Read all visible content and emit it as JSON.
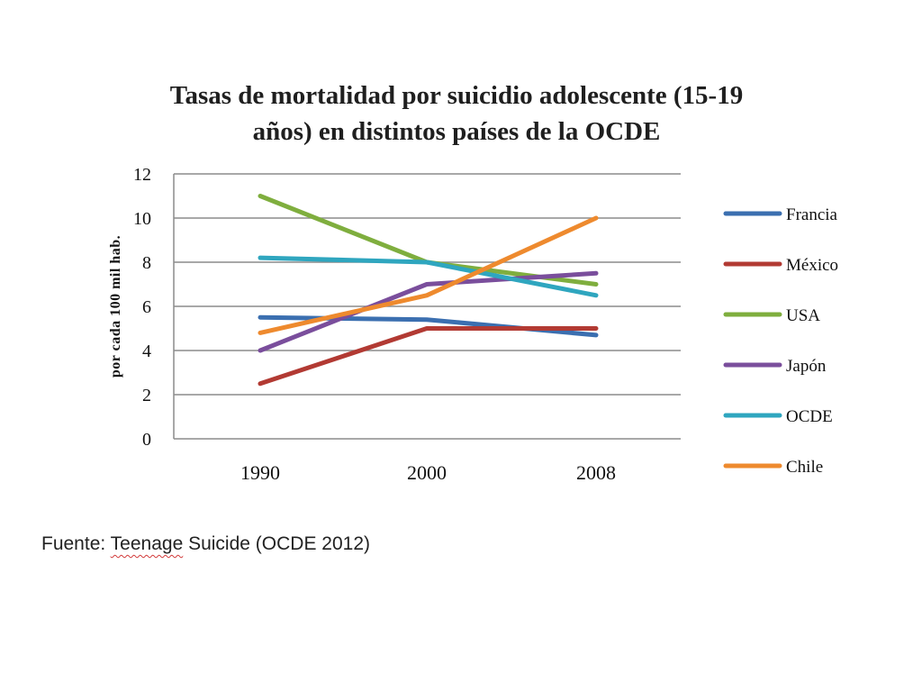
{
  "chart_data": {
    "type": "line",
    "title_lines": [
      "Tasas de mortalidad por suicidio adolescente (15-19",
      "años) en distintos países de la OCDE"
    ],
    "ylabel": "por cada 100 mil hab.",
    "xlabel": "",
    "categories": [
      "1990",
      "2000",
      "2008"
    ],
    "ylim": [
      0,
      12
    ],
    "yticks": [
      "0",
      "2",
      "4",
      "6",
      "8",
      "10",
      "12"
    ],
    "grid": true,
    "legend_position": "right",
    "series": [
      {
        "name": "Francia",
        "color": "#3b6fb0",
        "values": [
          5.5,
          5.4,
          4.7
        ]
      },
      {
        "name": "México",
        "color": "#b23a33",
        "values": [
          2.5,
          5.0,
          5.0
        ]
      },
      {
        "name": "USA",
        "color": "#7fae3e",
        "values": [
          11.0,
          8.0,
          7.0
        ]
      },
      {
        "name": "Japón",
        "color": "#7a4e9c",
        "values": [
          4.0,
          7.0,
          7.5
        ]
      },
      {
        "name": "OCDE",
        "color": "#2fa6bf",
        "values": [
          8.2,
          8.0,
          6.5
        ]
      },
      {
        "name": "Chile",
        "color": "#ee8a2e",
        "values": [
          4.8,
          6.5,
          10.0
        ]
      }
    ]
  },
  "source": {
    "prefix": "Fuente: ",
    "word": "Teenage",
    "suffix": " Suicide (OCDE 2012)"
  }
}
